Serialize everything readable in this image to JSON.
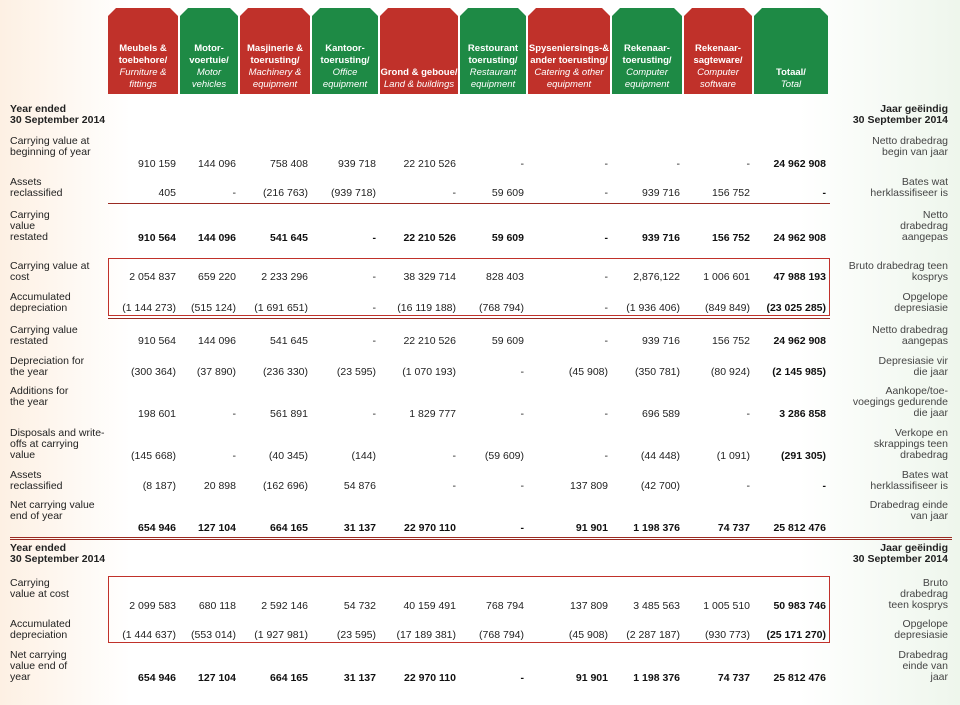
{
  "headers": [
    {
      "af": "Meubels & toebehore/",
      "en": "Furniture & fittings"
    },
    {
      "af": "Motor-voertuie/",
      "en": "Motor vehicles"
    },
    {
      "af": "Masjinerie & toerusting/",
      "en": "Machinery & equipment"
    },
    {
      "af": "Kantoor-toerusting/",
      "en": "Office equipment"
    },
    {
      "af": "Grond & geboue/",
      "en": "Land & buildings"
    },
    {
      "af": "Restourant toerusting/",
      "en": "Restaurant equipment"
    },
    {
      "af": "Spyseniersings-& ander toerusting/",
      "en": "Catering & other equipment"
    },
    {
      "af": "Rekenaar-toerusting/",
      "en": "Computer equipment"
    },
    {
      "af": "Rekenaar-sagteware/",
      "en": "Computer software"
    },
    {
      "af": "Totaal/",
      "en": "Total"
    }
  ],
  "year_left": "Year ended",
  "year_left2": "30 September 2014",
  "year_right": "Jaar geëindig",
  "year_right2": "30 September 2014",
  "rows": [
    {
      "en": "Carrying value at beginning of year",
      "af": "Netto drabedrag begin van jaar",
      "bold": false,
      "vals": [
        "910 159",
        "144 096",
        "758 408",
        "939 718",
        "22 210 526",
        "-",
        "-",
        "-",
        "-",
        "24 962 908"
      ]
    },
    {
      "en": "Assets reclassified",
      "af": "Bates wat herklassifiseer is",
      "bold": false,
      "vals": [
        "405",
        "-",
        "(216 763)",
        "(939 718)",
        "-",
        "59 609",
        "-",
        "939 716",
        "156 752",
        "-"
      ]
    },
    {
      "en": "Carrying value restated",
      "af": "Netto drabedrag aangepas",
      "bold": true,
      "vals": [
        "910 564",
        "144 096",
        "541 645",
        "-",
        "22 210 526",
        "59 609",
        "-",
        "939 716",
        "156 752",
        "24 962 908"
      ]
    },
    {
      "en": "Carrying value at cost",
      "af": "Bruto drabedrag teen kosprys",
      "bold": false,
      "vals": [
        "2 054 837",
        "659 220",
        "2 233 296",
        "-",
        "38 329 714",
        "828 403",
        "-",
        "2,876,122",
        "1 006 601",
        "47 988 193"
      ]
    },
    {
      "en": "Accumulated depreciation",
      "af": "Opgelope depresiasie",
      "bold": false,
      "vals": [
        "(1 144 273)",
        "(515 124)",
        "(1 691 651)",
        "-",
        "(16 119 188)",
        "(768 794)",
        "-",
        "(1 936 406)",
        "(849 849)",
        "(23 025 285)"
      ]
    },
    {
      "en": "Carrying value restated",
      "af": "Netto drabedrag aangepas",
      "bold": false,
      "vals": [
        "910 564",
        "144 096",
        "541 645",
        "-",
        "22 210 526",
        "59 609",
        "-",
        "939 716",
        "156 752",
        "24 962 908"
      ]
    },
    {
      "en": "Depreciation for the year",
      "af": "Depresiasie vir die jaar",
      "bold": false,
      "vals": [
        "(300 364)",
        "(37 890)",
        "(236 330)",
        "(23 595)",
        "(1 070 193)",
        "-",
        "(45 908)",
        "(350 781)",
        "(80 924)",
        "(2 145 985)"
      ]
    },
    {
      "en": "Additions for the year",
      "af": "Aankope/toe-voegings gedurende die jaar",
      "bold": false,
      "vals": [
        "198 601",
        "-",
        "561 891",
        "-",
        "1 829 777",
        "-",
        "-",
        "696 589",
        "-",
        "3 286 858"
      ]
    },
    {
      "en": "Disposals and write-offs at carrying value",
      "af": "Verkope en skrappings teen drabedrag",
      "bold": false,
      "vals": [
        "(145 668)",
        "-",
        "(40 345)",
        "(144)",
        "-",
        "(59 609)",
        "-",
        "(44 448)",
        "(1 091)",
        "(291 305)"
      ]
    },
    {
      "en": "Assets reclassified",
      "af": "Bates wat herklassifiseer is",
      "bold": false,
      "vals": [
        "(8 187)",
        "20 898",
        "(162 696)",
        "54 876",
        "-",
        "-",
        "137 809",
        "(42 700)",
        "-",
        "-"
      ]
    },
    {
      "en": "Net carrying value end of year",
      "af": "Drabedrag einde van jaar",
      "bold": true,
      "vals": [
        "654 946",
        "127 104",
        "664 165",
        "31 137",
        "22 970 110",
        "-",
        "91 901",
        "1 198 376",
        "74 737",
        "25 812 476"
      ]
    },
    {
      "en": "Carrying value at cost",
      "af": "Bruto drabedrag teen kosprys",
      "bold": false,
      "vals": [
        "2 099 583",
        "680 118",
        "2 592 146",
        "54 732",
        "40 159 491",
        "768 794",
        "137 809",
        "3 485 563",
        "1 005 510",
        "50 983 746"
      ]
    },
    {
      "en": "Accumulated depreciation",
      "af": "Opgelope depresiasie",
      "bold": false,
      "vals": [
        "(1 444 637)",
        "(553 014)",
        "(1 927 981)",
        "(23 595)",
        "(17 189 381)",
        "(768 794)",
        "(45 908)",
        "(2 287 187)",
        "(930 773)",
        "(25 171 270)"
      ]
    },
    {
      "en": "Net carrying value end of year",
      "af": "Drabedrag einde van jaar",
      "bold": true,
      "vals": [
        "654 946",
        "127 104",
        "664 165",
        "31 137",
        "22 970 110",
        "-",
        "91 901",
        "1 198 376",
        "74 737",
        "25 812 476"
      ]
    }
  ]
}
